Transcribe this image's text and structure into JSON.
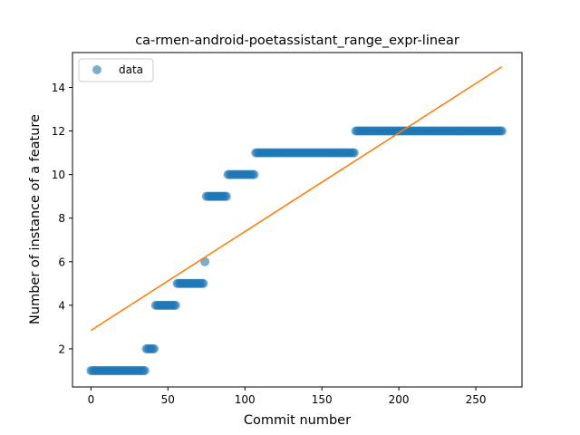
{
  "chart_data": {
    "type": "scatter",
    "title": "ca-rmen-android-poetassistant_range_expr-linear",
    "xlabel": "Commit number",
    "ylabel": "Number of instance of a feature",
    "xlim": [
      -12,
      280
    ],
    "ylim": [
      0.25,
      15.6
    ],
    "xticks": [
      0,
      50,
      100,
      150,
      200,
      250
    ],
    "yticks": [
      2,
      4,
      6,
      8,
      10,
      12,
      14
    ],
    "grid": false,
    "legend": {
      "position": "top-left",
      "entries": [
        "data"
      ]
    },
    "colors": {
      "data": "#1f77b4",
      "fit": "#ff7f0e"
    },
    "series": [
      {
        "name": "data",
        "kind": "scatter",
        "runs": [
          {
            "x_start": 0,
            "x_end": 35,
            "y": 1
          },
          {
            "x_start": 36,
            "x_end": 41,
            "y": 2
          },
          {
            "x_start": 42,
            "x_end": 55,
            "y": 4
          },
          {
            "x_start": 56,
            "x_end": 73,
            "y": 5
          },
          {
            "x_start": 74,
            "x_end": 74,
            "y": 6
          },
          {
            "x_start": 75,
            "x_end": 88,
            "y": 9
          },
          {
            "x_start": 89,
            "x_end": 106,
            "y": 10
          },
          {
            "x_start": 107,
            "x_end": 171,
            "y": 11
          },
          {
            "x_start": 172,
            "x_end": 267,
            "y": 12
          }
        ]
      },
      {
        "kind": "line",
        "x": [
          0,
          267
        ],
        "y": [
          2.85,
          14.95
        ]
      }
    ]
  }
}
